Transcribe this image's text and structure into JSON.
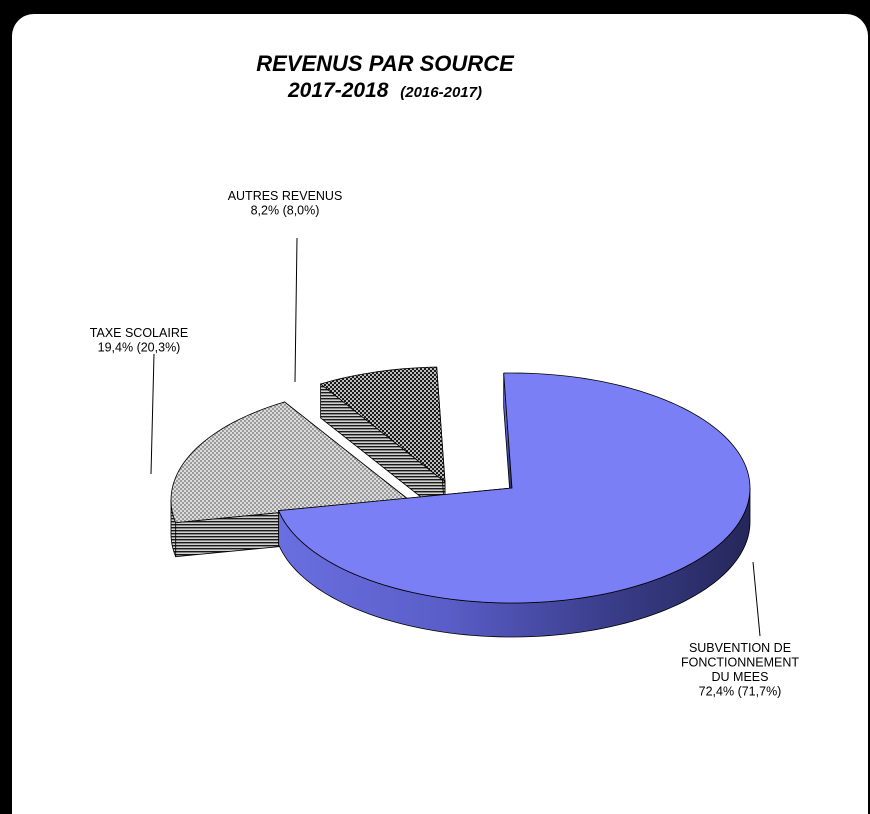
{
  "chart_data": {
    "type": "pie",
    "style": "3d-exploded",
    "title": "REVENUS PAR SOURCE",
    "subtitle_main": "2017-2018",
    "subtitle_paren": "(2016-2017)",
    "slices": [
      {
        "key": "subvention",
        "label_lines": [
          "SUBVENTION DE",
          "FONCTIONNEMENT",
          "DU MEES"
        ],
        "value": 72.4,
        "previous_value": 71.7,
        "value_text": "72,4% (71,7%)",
        "color": "#7b7ff5"
      },
      {
        "key": "taxe",
        "label_lines": [
          "TAXE  SCOLAIRE"
        ],
        "value": 19.4,
        "previous_value": 20.3,
        "value_text": "19,4% (20,3%)",
        "color": "#8c8c8c"
      },
      {
        "key": "autres",
        "label_lines": [
          "AUTRES REVENUS"
        ],
        "value": 8.2,
        "previous_value": 8.0,
        "value_text": "8,2% (8,0%)",
        "color": "#2a2a2a"
      }
    ]
  }
}
